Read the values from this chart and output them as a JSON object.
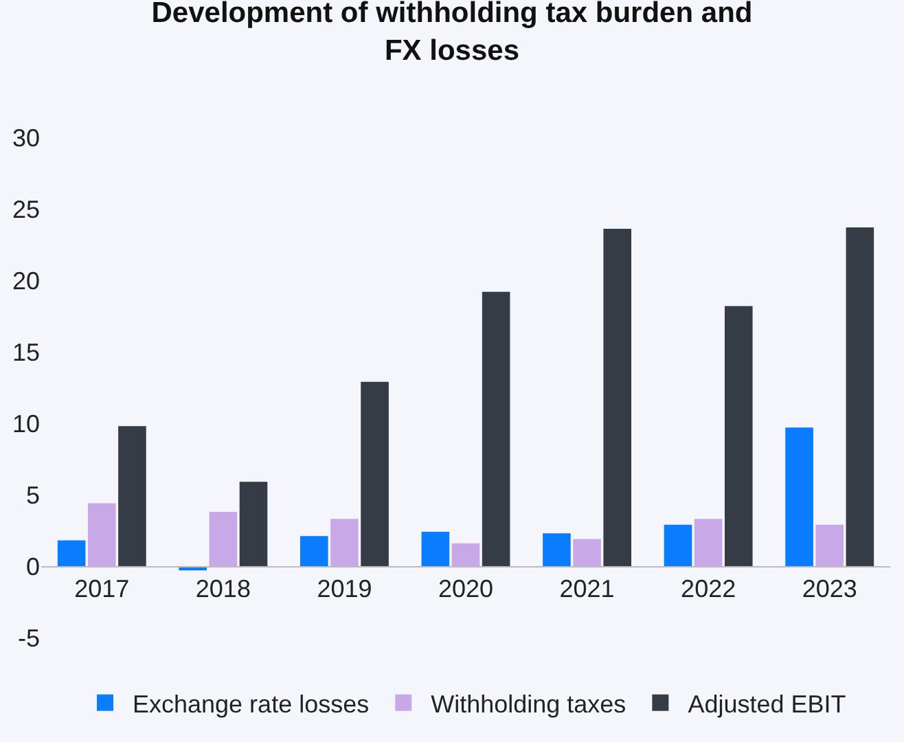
{
  "chart_data": {
    "type": "bar",
    "title": "Development of withholding tax burden and FX losses",
    "categories": [
      "2017",
      "2018",
      "2019",
      "2020",
      "2021",
      "2022",
      "2023"
    ],
    "series": [
      {
        "name": "Exchange rate losses",
        "color": "#0a7cff",
        "values": [
          1.8,
          -0.3,
          2.1,
          2.4,
          2.3,
          2.9,
          9.7
        ]
      },
      {
        "name": "Withholding taxes",
        "color": "#c9a8e8",
        "values": [
          4.4,
          3.8,
          3.3,
          1.6,
          1.9,
          3.3,
          2.9
        ]
      },
      {
        "name": "Adjusted EBIT",
        "color": "#353c46",
        "values": [
          9.8,
          5.9,
          12.9,
          19.2,
          23.6,
          18.2,
          23.7
        ]
      }
    ],
    "ylim": [
      -5,
      30
    ],
    "yticks": [
      -5,
      0,
      5,
      10,
      15,
      20,
      25,
      30
    ],
    "grid": false,
    "legend": "bottom"
  }
}
